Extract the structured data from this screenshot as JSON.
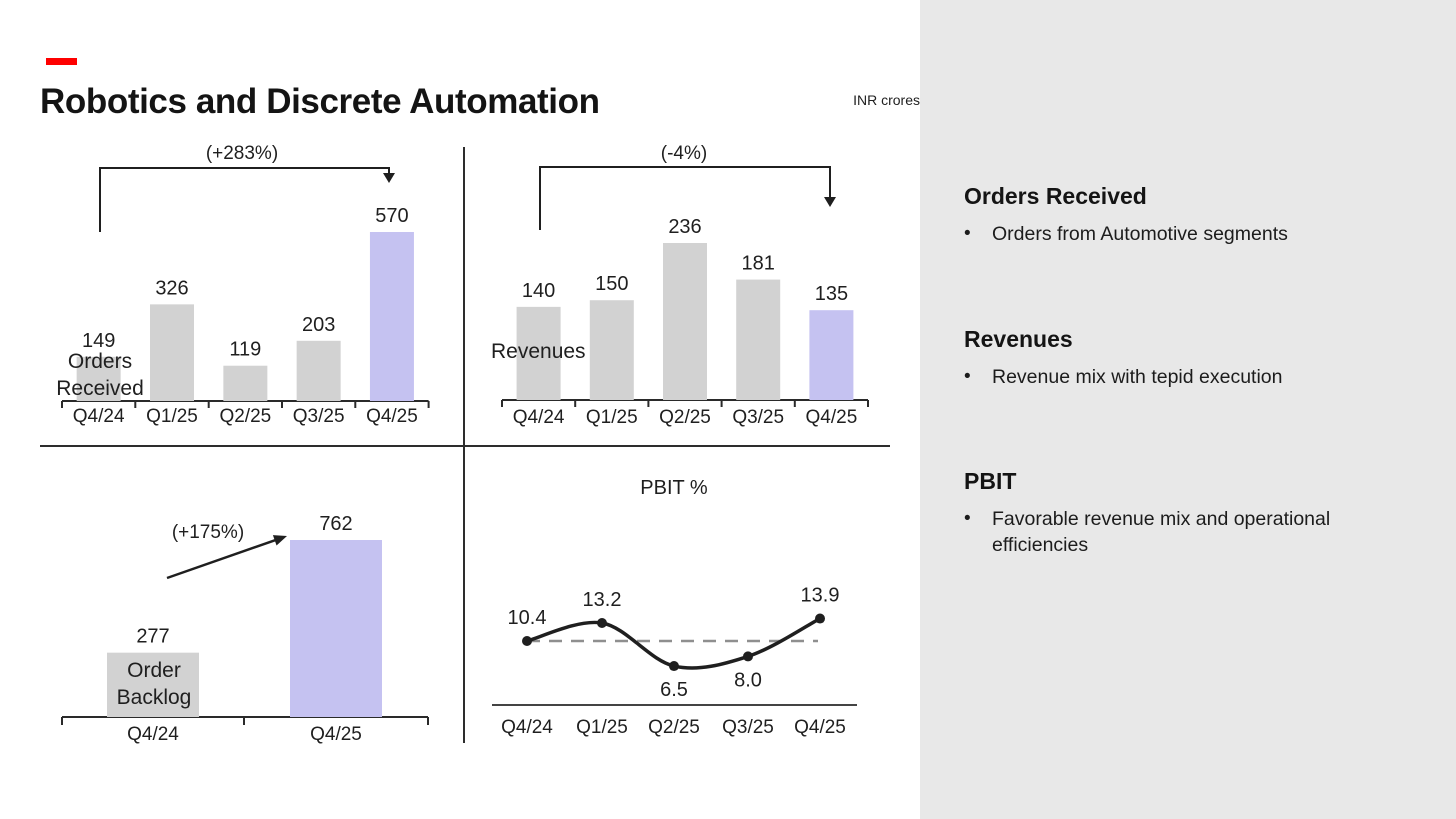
{
  "slide": {
    "title": "Robotics and Discrete Automation",
    "unit_note": "INR crores"
  },
  "colors": {
    "accent": "#fe0000",
    "bar": "#d2d2d2",
    "highlight": "#c5c2f1",
    "panel_bg": "#e8e8e8",
    "line": "#1f1f1f",
    "dash": "#8f8f8f",
    "axis": "#2a2a2a",
    "axis_label": "#383838",
    "muted_title": "#4d4d4d"
  },
  "chart_data": [
    {
      "id": "orders",
      "type": "bar",
      "series_label": "Orders Received",
      "series_label_lines": [
        "Orders",
        "Received"
      ],
      "categories": [
        "Q4/24",
        "Q1/25",
        "Q2/25",
        "Q3/25",
        "Q4/25"
      ],
      "values": [
        149,
        326,
        119,
        203,
        570
      ],
      "highlight_index": 4,
      "annotation": "(+283%)",
      "legend_position": "none",
      "grid": false
    },
    {
      "id": "revenues",
      "type": "bar",
      "series_label": "Revenues",
      "categories": [
        "Q4/24",
        "Q1/25",
        "Q2/25",
        "Q3/25",
        "Q4/25"
      ],
      "values": [
        140,
        150,
        236,
        181,
        135
      ],
      "highlight_index": 4,
      "annotation": "(-4%)",
      "legend_position": "none",
      "grid": false
    },
    {
      "id": "backlog",
      "type": "bar",
      "series_label": "Order Backlog",
      "series_label_lines": [
        "Order",
        "Backlog"
      ],
      "categories": [
        "Q4/24",
        "Q4/25"
      ],
      "values": [
        277,
        762
      ],
      "highlight_index": 1,
      "annotation": "(+175%)",
      "legend_position": "none",
      "grid": false
    },
    {
      "id": "pbit",
      "type": "line",
      "title": "PBIT %",
      "categories": [
        "Q4/24",
        "Q1/25",
        "Q2/25",
        "Q3/25",
        "Q4/25"
      ],
      "values": [
        10.4,
        13.2,
        6.5,
        8.0,
        13.9
      ],
      "point_labels": [
        "10.4",
        "13.2",
        "6.5",
        "8.0",
        "13.9"
      ],
      "label_side": [
        "above",
        "above",
        "below",
        "below",
        "above"
      ],
      "reference_value": 10.4,
      "grid": false,
      "legend_position": "none"
    }
  ],
  "panel": {
    "bullet_char": "•",
    "sections": [
      {
        "heading": "Orders Received",
        "bullets": [
          "Orders from Automotive segments"
        ]
      },
      {
        "heading": "Revenues",
        "bullets": [
          "Revenue mix with tepid execution"
        ]
      },
      {
        "heading": "PBIT",
        "bullets": [
          "Favorable revenue mix and operational efficiencies"
        ]
      }
    ]
  }
}
